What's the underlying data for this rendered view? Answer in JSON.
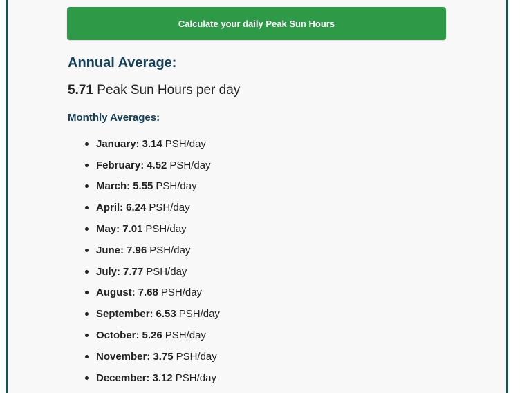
{
  "calculator": {
    "button_label": "Calculate your daily Peak Sun Hours"
  },
  "annual": {
    "heading": "Annual Average:",
    "value": "5.71",
    "unit_text": "Peak Sun Hours per day"
  },
  "monthly": {
    "heading": "Monthly Averages:",
    "items": [
      {
        "month": "January:",
        "value": "3.14",
        "unit": "PSH/day"
      },
      {
        "month": "February:",
        "value": "4.52",
        "unit": "PSH/day"
      },
      {
        "month": "March:",
        "value": "5.55",
        "unit": "PSH/day"
      },
      {
        "month": "April:",
        "value": "6.24",
        "unit": "PSH/day"
      },
      {
        "month": "May:",
        "value": "7.01",
        "unit": "PSH/day"
      },
      {
        "month": "June:",
        "value": "7.96",
        "unit": "PSH/day"
      },
      {
        "month": "July:",
        "value": "7.77",
        "unit": "PSH/day"
      },
      {
        "month": "August:",
        "value": "7.68",
        "unit": "PSH/day"
      },
      {
        "month": "September:",
        "value": "6.53",
        "unit": "PSH/day"
      },
      {
        "month": "October:",
        "value": "5.26",
        "unit": "PSH/day"
      },
      {
        "month": "November:",
        "value": "3.75",
        "unit": "PSH/day"
      },
      {
        "month": "December:",
        "value": "3.12",
        "unit": "PSH/day"
      }
    ]
  },
  "colors": {
    "button_bg": "#2e9a47",
    "heading": "#14405a",
    "frame_border": "#1f4f4a"
  }
}
